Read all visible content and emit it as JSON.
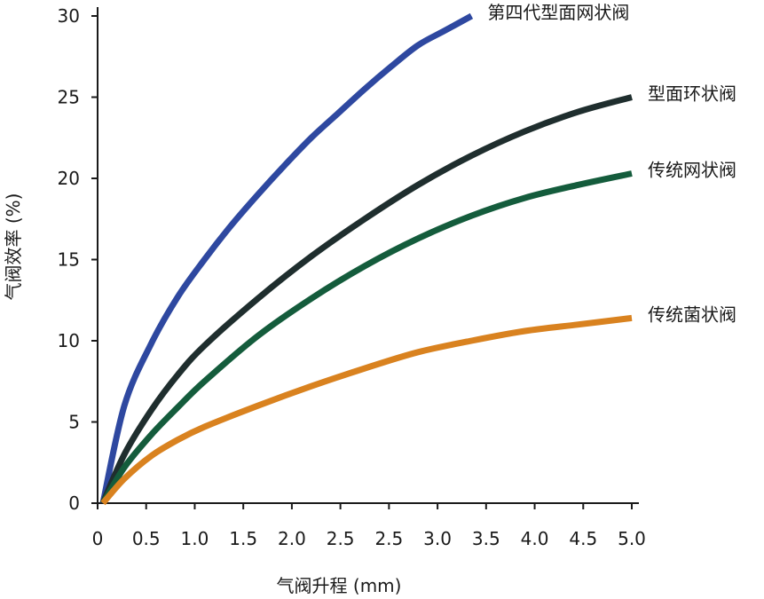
{
  "chart_data": {
    "type": "line",
    "title": "",
    "xlabel": "气阀升程 (mm)",
    "ylabel": "气阀效率 (%)",
    "xlim": [
      0,
      5.0
    ],
    "ylim": [
      0,
      30
    ],
    "x_ticks": [
      "0",
      "0.5",
      "1.0",
      "1.5",
      "2.0",
      "2.5",
      "2.5",
      "3.0",
      "3.5",
      "4.0",
      "4.5",
      "5.0"
    ],
    "y_ticks": [
      "0",
      "5",
      "10",
      "15",
      "20",
      "25",
      "30"
    ],
    "grid": false,
    "series": [
      {
        "name": "第四代型面网状阀",
        "color": "#2e48a0",
        "x": [
          0.05,
          0.25,
          0.5,
          0.75,
          1.0,
          1.25,
          1.5,
          1.75,
          2.0,
          2.25,
          2.5,
          2.75,
          3.0,
          3.25,
          3.5
        ],
        "y": [
          0,
          6.0,
          9.8,
          12.7,
          15.0,
          17.1,
          19.0,
          20.8,
          22.5,
          24.0,
          25.5,
          26.9,
          28.2,
          29.1,
          30.0
        ]
      },
      {
        "name": "型面环状阀",
        "color": "#1f2e2e",
        "x": [
          0.05,
          0.25,
          0.5,
          0.75,
          1.0,
          1.5,
          2.0,
          2.5,
          3.0,
          3.5,
          4.0,
          4.5,
          5.0
        ],
        "y": [
          0,
          3.0,
          5.7,
          7.9,
          9.7,
          12.6,
          15.2,
          17.5,
          19.6,
          21.4,
          22.9,
          24.1,
          25.0
        ]
      },
      {
        "name": "传统网状阀",
        "color": "#145c3c",
        "x": [
          0.05,
          0.25,
          0.5,
          0.75,
          1.0,
          1.5,
          2.0,
          2.5,
          3.0,
          3.5,
          4.0,
          4.5,
          5.0
        ],
        "y": [
          0,
          2.2,
          4.2,
          5.9,
          7.5,
          10.3,
          12.6,
          14.6,
          16.3,
          17.7,
          18.8,
          19.6,
          20.3
        ]
      },
      {
        "name": "传统菌状阀",
        "color": "#d9821f",
        "x": [
          0.05,
          0.25,
          0.5,
          0.75,
          1.0,
          1.5,
          2.0,
          2.5,
          3.0,
          3.5,
          4.0,
          4.5,
          5.0
        ],
        "y": [
          0,
          1.5,
          2.9,
          3.9,
          4.7,
          6.0,
          7.2,
          8.3,
          9.3,
          10.0,
          10.6,
          11.0,
          11.4
        ]
      }
    ]
  }
}
